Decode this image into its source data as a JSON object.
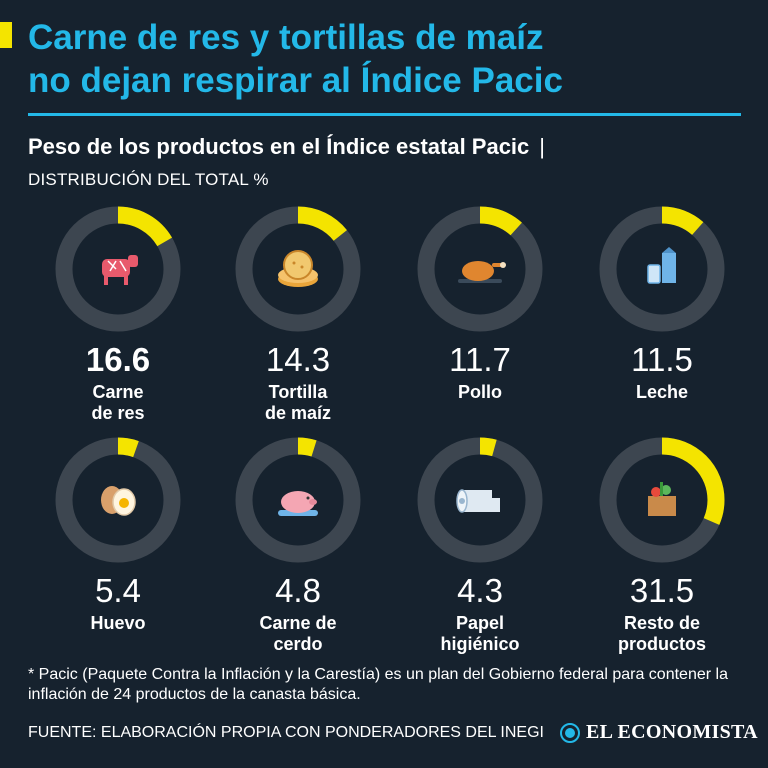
{
  "title_lines": [
    "Carne de res y tortillas de maíz",
    "no dejan respirar al Índice Pacic"
  ],
  "subtitle": "Peso de los productos en el Índice estatal Pacic",
  "subtitle_sep": "|",
  "unit_label": "DISTRIBUCIÓN DEL TOTAL %",
  "colors": {
    "ring_bg": "#3d4650",
    "ring_fill": "#f4e400",
    "title": "#23b8e8",
    "background": "#16222e"
  },
  "chart_data": {
    "type": "pie",
    "title": "Peso de los productos en el Índice estatal Pacic",
    "subtitle": "DISTRIBUCIÓN DEL TOTAL %",
    "items": [
      {
        "name": "Carne de res",
        "label_lines": [
          "Carne",
          "de res"
        ],
        "value": 16.6,
        "value_text": "16.6",
        "icon": "cow-icon",
        "highlight": true
      },
      {
        "name": "Tortilla de maíz",
        "label_lines": [
          "Tortilla",
          "de maíz"
        ],
        "value": 14.3,
        "value_text": "14.3",
        "icon": "tortilla-icon",
        "highlight": false
      },
      {
        "name": "Pollo",
        "label_lines": [
          "Pollo"
        ],
        "value": 11.7,
        "value_text": "11.7",
        "icon": "chicken-icon",
        "highlight": false
      },
      {
        "name": "Leche",
        "label_lines": [
          "Leche"
        ],
        "value": 11.5,
        "value_text": "11.5",
        "icon": "milk-icon",
        "highlight": false
      },
      {
        "name": "Huevo",
        "label_lines": [
          "Huevo"
        ],
        "value": 5.4,
        "value_text": "5.4",
        "icon": "egg-icon",
        "highlight": false
      },
      {
        "name": "Carne de cerdo",
        "label_lines": [
          "Carne de",
          "cerdo"
        ],
        "value": 4.8,
        "value_text": "4.8",
        "icon": "pig-icon",
        "highlight": false
      },
      {
        "name": "Papel higiénico",
        "label_lines": [
          "Papel",
          "higiénico"
        ],
        "value": 4.3,
        "value_text": "4.3",
        "icon": "toilet-paper-icon",
        "highlight": false
      },
      {
        "name": "Resto de productos",
        "label_lines": [
          "Resto de",
          "productos"
        ],
        "value": 31.5,
        "value_text": "31.5",
        "icon": "grocery-bag-icon",
        "highlight": false
      }
    ]
  },
  "note": "* Pacic (Paquete Contra la Inflación y la Carestía) es un plan del Gobierno federal para contener la inflación de 24 productos de la canasta básica.",
  "source": "FUENTE: ELABORACIÓN PROPIA CON PONDERADORES DEL INEGI",
  "brand": "EL ECONOMISTA"
}
